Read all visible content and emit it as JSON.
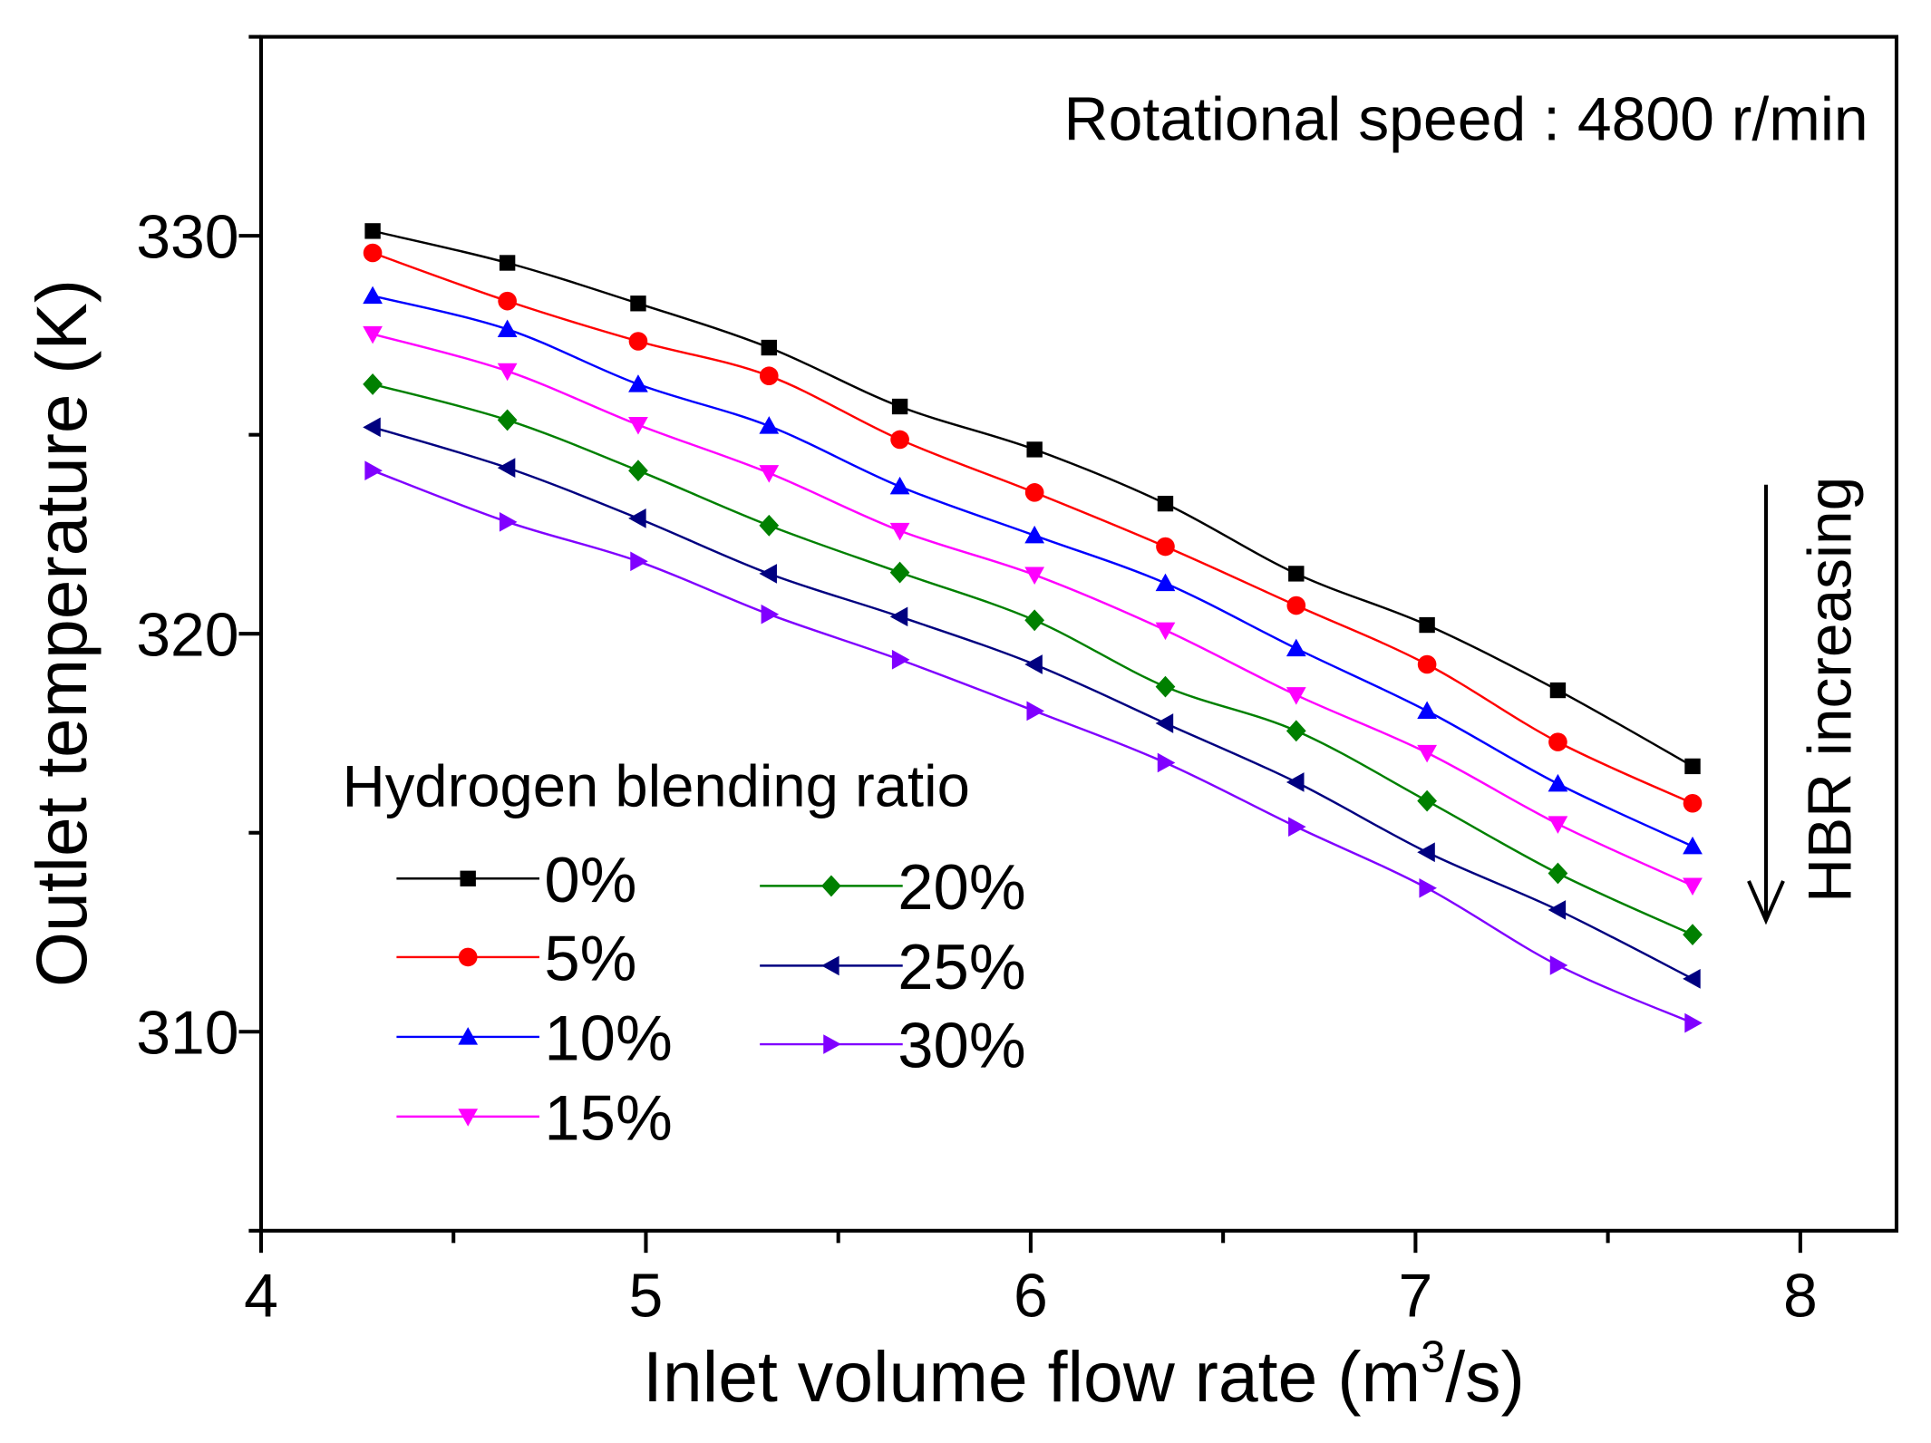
{
  "chart_data": {
    "type": "line",
    "title": "",
    "annotation": "Rotational speed : 4800 r/min",
    "arrow_label": "HBR increasing",
    "xlabel": "Inlet volume flow rate (m",
    "xlabel_sup": "3",
    "xlabel_tail": "/s)",
    "ylabel": "Outlet temperature (K)",
    "xlim": [
      4,
      8.25
    ],
    "ylim": [
      305,
      335
    ],
    "xticks": [
      4,
      5,
      6,
      7,
      8
    ],
    "xtick_labels": [
      "4",
      "5",
      "6",
      "7",
      "8"
    ],
    "yticks": [
      310,
      320,
      330
    ],
    "ytick_labels": [
      "310",
      "320",
      "330"
    ],
    "grid": false,
    "legend_title": "Hydrogen blending ratio",
    "legend_placement": "lower-left",
    "x": [
      4.29,
      4.64,
      4.98,
      5.32,
      5.66,
      6.01,
      6.35,
      6.69,
      7.03,
      7.37,
      7.72
    ],
    "series": [
      {
        "name": "0%",
        "color": "#000000",
        "marker": "square",
        "values": [
          330.12,
          329.32,
          328.3,
          327.19,
          325.71,
          324.63,
          323.27,
          321.51,
          320.22,
          318.58,
          316.67
        ]
      },
      {
        "name": "5%",
        "color": "#ff0000",
        "marker": "circle",
        "values": [
          329.57,
          328.36,
          327.35,
          326.48,
          324.88,
          323.55,
          322.19,
          320.71,
          319.23,
          317.28,
          315.74
        ]
      },
      {
        "name": "10%",
        "color": "#0000ff",
        "marker": "triangle-up",
        "values": [
          328.49,
          327.65,
          326.27,
          325.22,
          323.7,
          322.47,
          321.27,
          319.63,
          318.06,
          316.23,
          314.66
        ]
      },
      {
        "name": "15%",
        "color": "#ff00ff",
        "marker": "triangle-down",
        "values": [
          327.53,
          326.6,
          325.25,
          324.04,
          322.59,
          321.48,
          320.09,
          318.46,
          317.01,
          315.22,
          313.67
        ]
      },
      {
        "name": "20%",
        "color": "#008000",
        "marker": "diamond",
        "values": [
          326.27,
          325.37,
          324.1,
          322.72,
          321.54,
          320.34,
          318.67,
          317.56,
          315.8,
          313.98,
          312.44
        ]
      },
      {
        "name": "25%",
        "color": "#000080",
        "marker": "triangle-left",
        "values": [
          325.19,
          324.17,
          322.9,
          321.51,
          320.43,
          319.23,
          317.75,
          316.27,
          314.51,
          313.06,
          311.33
        ]
      },
      {
        "name": "30%",
        "color": "#8000ff",
        "marker": "triangle-right",
        "values": [
          324.1,
          322.81,
          321.82,
          320.49,
          319.35,
          318.06,
          316.76,
          315.15,
          313.61,
          311.67,
          310.22
        ]
      }
    ]
  }
}
